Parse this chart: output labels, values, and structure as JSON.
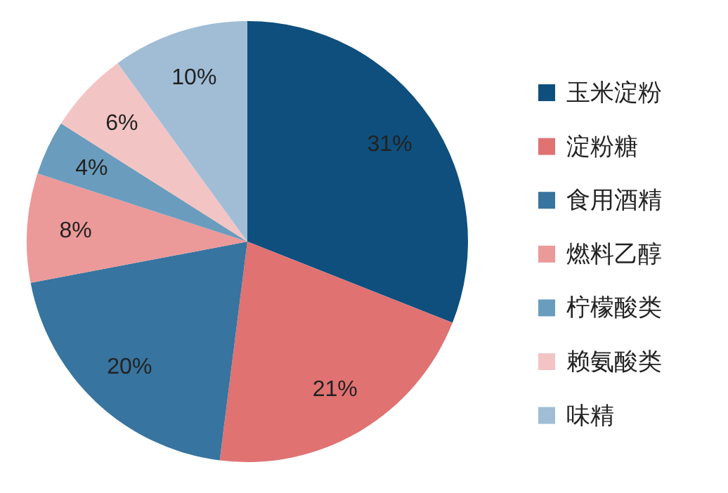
{
  "chart_data": {
    "type": "pie",
    "categories": [
      "玉米淀粉",
      "淀粉糖",
      "食用酒精",
      "燃料乙醇",
      "柠檬酸类",
      "赖氨酸类",
      "味精"
    ],
    "values": [
      31,
      21,
      20,
      8,
      4,
      6,
      10
    ],
    "value_labels": [
      "31%",
      "21%",
      "20%",
      "8%",
      "4%",
      "6%",
      "10%"
    ],
    "colors": [
      "#0e4f7d",
      "#e07272",
      "#37749f",
      "#ec9999",
      "#6a9cbd",
      "#f3c4c4",
      "#a0bdd5"
    ],
    "legend": "right"
  }
}
